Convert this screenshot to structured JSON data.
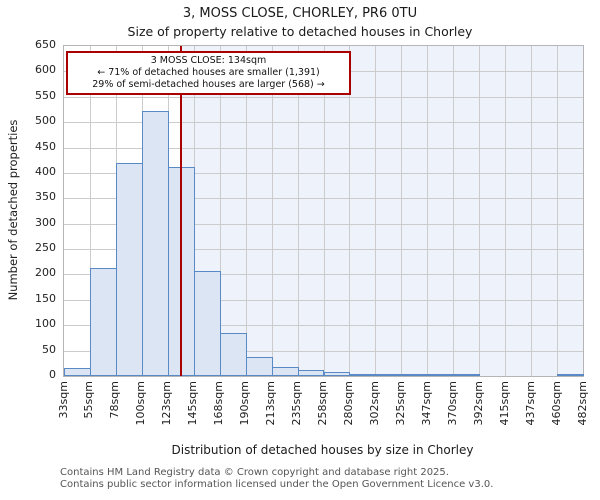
{
  "chart_data": {
    "type": "bar",
    "title": "3, MOSS CLOSE, CHORLEY, PR6 0TU",
    "subtitle": "Size of property relative to detached houses in Chorley",
    "xlabel": "Distribution of detached houses by size in Chorley",
    "ylabel": "Number of detached properties",
    "ylim": [
      0,
      650
    ],
    "ytick_step": 50,
    "ytick_labels": [
      "0",
      "50",
      "100",
      "150",
      "200",
      "250",
      "300",
      "350",
      "400",
      "450",
      "500",
      "550",
      "600",
      "650"
    ],
    "bin_edges_sqm": [
      33,
      55,
      78,
      100,
      123,
      145,
      168,
      190,
      213,
      235,
      258,
      280,
      302,
      325,
      347,
      370,
      392,
      415,
      437,
      460,
      482
    ],
    "xtick_labels": [
      "33sqm",
      "55sqm",
      "78sqm",
      "100sqm",
      "123sqm",
      "145sqm",
      "168sqm",
      "190sqm",
      "213sqm",
      "235sqm",
      "258sqm",
      "280sqm",
      "302sqm",
      "325sqm",
      "347sqm",
      "370sqm",
      "392sqm",
      "415sqm",
      "437sqm",
      "460sqm",
      "482sqm"
    ],
    "values": [
      15,
      212,
      420,
      522,
      412,
      207,
      85,
      38,
      17,
      12,
      7,
      4,
      2,
      1,
      1,
      1,
      0,
      0,
      0,
      1
    ],
    "grid": true,
    "legend": "none",
    "marker": {
      "value_sqm": 134,
      "annotation_title": "3 MOSS CLOSE: 134sqm",
      "annotation_line2": "← 71% of detached houses are smaller (1,391)",
      "annotation_line3": "29% of semi-detached houses are larger (568) →"
    },
    "colors": {
      "bar_fill": "#dbe5f4",
      "bar_stroke": "#5a8ac6",
      "marker_red": "#aa0000",
      "grid": "#cccccc",
      "shade_right_of_marker": "#edf2fb"
    },
    "footer_lines": [
      "Contains HM Land Registry data © Crown copyright and database right 2025.",
      "Contains public sector information licensed under the Open Government Licence v3.0."
    ]
  }
}
